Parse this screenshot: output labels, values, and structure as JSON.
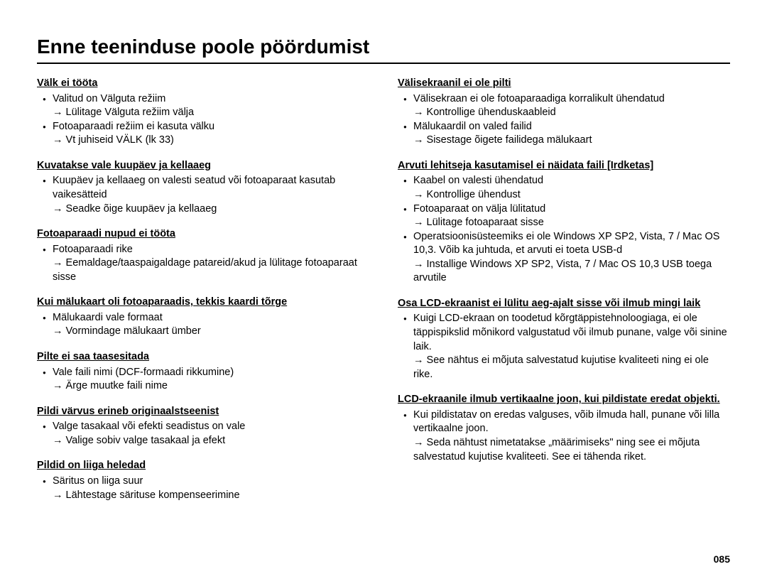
{
  "title": "Enne teeninduse poole pöördumist",
  "page_number": "085",
  "left": [
    {
      "heading": "Välk ei tööta",
      "items": [
        {
          "text": "Valitud on Välguta režiim",
          "arrow": "Lülitage Välguta režiim välja"
        },
        {
          "text": "Fotoaparaadi režiim ei kasuta välku",
          "arrow": "Vt juhiseid VÄLK (lk 33)"
        }
      ]
    },
    {
      "heading": "Kuvatakse vale kuupäev ja kellaaeg",
      "items": [
        {
          "text": "Kuupäev ja kellaaeg on valesti seatud või fotoaparaat kasutab vaikesätteid",
          "arrow": "Seadke õige kuupäev ja kellaaeg"
        }
      ]
    },
    {
      "heading": "Fotoaparaadi nupud ei tööta",
      "items": [
        {
          "text": "Fotoaparaadi rike",
          "arrow": "Eemaldage/taaspaigaldage patareid/akud ja lülitage fotoaparaat sisse"
        }
      ]
    },
    {
      "heading": "Kui mälukaart oli fotoaparaadis, tekkis kaardi tõrge",
      "items": [
        {
          "text": "Mälukaardi vale formaat",
          "arrow": "Vormindage mälukaart ümber"
        }
      ]
    },
    {
      "heading": "Pilte ei saa taasesitada",
      "items": [
        {
          "text": "Vale faili nimi (DCF-formaadi rikkumine)",
          "arrow": "Ärge muutke faili nime"
        }
      ]
    },
    {
      "heading": "Pildi värvus erineb originaalstseenist",
      "items": [
        {
          "text": "Valge tasakaal või efekti seadistus on vale",
          "arrow": "Valige sobiv valge tasakaal ja efekt"
        }
      ]
    },
    {
      "heading": "Pildid on liiga heledad",
      "items": [
        {
          "text": "Säritus on liiga suur",
          "arrow": "Lähtestage särituse kompenseerimine"
        }
      ]
    }
  ],
  "right": [
    {
      "heading": "Välisekraanil ei ole pilti",
      "items": [
        {
          "text": "Välisekraan ei ole fotoaparaadiga korralikult ühendatud",
          "arrow": "Kontrollige ühenduskaableid"
        },
        {
          "text": "Mälukaardil on valed failid",
          "arrow": "Sisestage õigete failidega mälukaart"
        }
      ]
    },
    {
      "heading": "Arvuti lehitseja kasutamisel ei näidata faili [Irdketas]",
      "items": [
        {
          "text": "Kaabel on valesti ühendatud",
          "arrow": "Kontrollige ühendust"
        },
        {
          "text": "Fotoaparaat on välja lülitatud",
          "arrow": "Lülitage fotoaparaat sisse"
        },
        {
          "text": "Operatsioonisüsteemiks ei ole Windows XP SP2, Vista, 7 / Mac OS 10,3. Võib ka juhtuda, et arvuti ei toeta USB-d",
          "arrow": "Installige Windows XP SP2, Vista, 7 / Mac OS 10,3 USB toega arvutile"
        }
      ]
    },
    {
      "heading": "Osa LCD-ekraanist ei lülitu aeg-ajalt sisse või ilmub mingi laik",
      "items": [
        {
          "text": "Kuigi LCD-ekraan on toodetud kõrgtäppistehnoloogiaga, ei ole täppispikslid mõnikord valgustatud või ilmub punane, valge või sinine laik.",
          "arrow": "See nähtus ei mõjuta salvestatud kujutise kvaliteeti ning ei ole rike."
        }
      ]
    },
    {
      "heading": "LCD-ekraanile ilmub vertikaalne joon, kui pildistate eredat objekti.",
      "items": [
        {
          "text": "Kui pildistatav on eredas valguses, võib ilmuda hall, punane või lilla vertikaalne joon.",
          "arrow": "Seda nähtust nimetatakse „määrimiseks\" ning see ei mõjuta salvestatud kujutise kvaliteeti. See ei tähenda riket."
        }
      ]
    }
  ]
}
